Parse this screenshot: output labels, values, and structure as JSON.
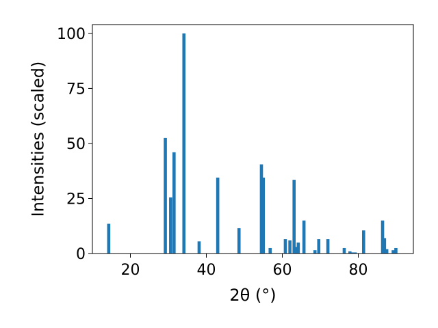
{
  "chart_data": {
    "type": "bar",
    "title": "",
    "xlabel": "2θ (°)",
    "ylabel": "Intensities (scaled)",
    "xlim": [
      10,
      94.5
    ],
    "ylim": [
      0,
      104
    ],
    "xticks": [
      20,
      40,
      60,
      80
    ],
    "yticks": [
      0,
      25,
      50,
      75,
      100
    ],
    "grid": false,
    "bar_color": "#1f77b4",
    "series": [
      {
        "x": [
          14.3,
          29.2,
          30.6,
          31.5,
          34.1,
          38.1,
          43.0,
          48.6,
          54.5,
          55.0,
          56.8,
          60.8,
          62.0,
          63.1,
          63.6,
          64.2,
          65.7,
          68.6,
          69.6,
          72.0,
          76.3,
          77.8,
          78.4,
          79.2,
          81.4,
          86.4,
          86.9,
          87.5,
          89.2,
          89.9
        ],
        "values": [
          13.5,
          52.5,
          25.5,
          46,
          100,
          5.5,
          34.5,
          11.5,
          40.5,
          34.5,
          2.5,
          6.5,
          6,
          33.5,
          3,
          5,
          15,
          1.5,
          6.5,
          6.5,
          2.5,
          1,
          0.5,
          0.5,
          10.5,
          15,
          7,
          2,
          1.5,
          2.5
        ]
      }
    ]
  }
}
